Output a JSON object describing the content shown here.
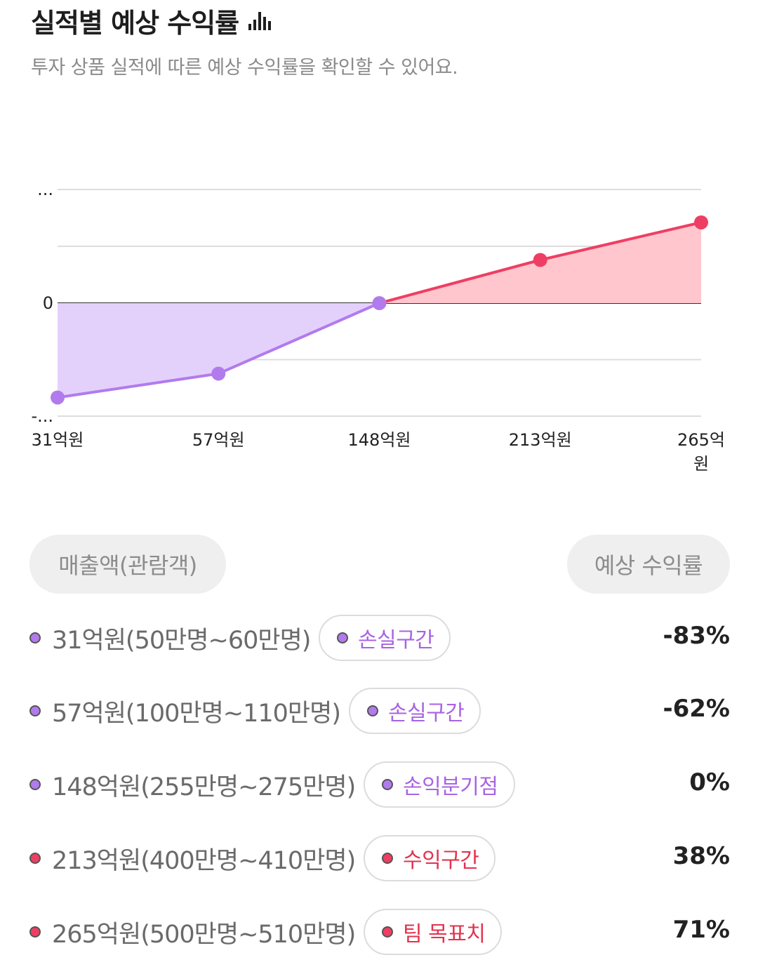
{
  "header": {
    "title": "실적별 예상 수익률",
    "subtitle": "투자 상품 실적에 따른 예상 수익률을 확인할 수 있어요."
  },
  "colors": {
    "loss": "#b27bed",
    "loss_fill": "#e3d1fb",
    "profit": "#ef3e63",
    "profit_fill": "#ffc6cd",
    "loss_text": "#a864e2",
    "profit_text": "#e2334e"
  },
  "chart_data": {
    "type": "area",
    "categories": [
      "31억원",
      "57억원",
      "148억원",
      "213억원",
      "265억원"
    ],
    "values": [
      -83,
      -62,
      0,
      38,
      71
    ],
    "y_tick_labels": [
      "...",
      "0",
      "-..."
    ],
    "ylim": [
      -100,
      100
    ],
    "grid": true,
    "zero_line": true
  },
  "table": {
    "col_left": "매출액(관람객)",
    "col_right": "예상 수익률",
    "rows": [
      {
        "label": "31억원(50만명~60만명)",
        "badge": "손실구간",
        "value": "-83%",
        "tone": "loss"
      },
      {
        "label": "57억원(100만명~110만명)",
        "badge": "손실구간",
        "value": "-62%",
        "tone": "loss"
      },
      {
        "label": "148억원(255만명~275만명)",
        "badge": "손익분기점",
        "value": "0%",
        "tone": "loss"
      },
      {
        "label": "213억원(400만명~410만명)",
        "badge": "수익구간",
        "value": "38%",
        "tone": "profit"
      },
      {
        "label": "265억원(500만명~510만명)",
        "badge": "팀 목표치",
        "value": "71%",
        "tone": "profit"
      }
    ]
  }
}
